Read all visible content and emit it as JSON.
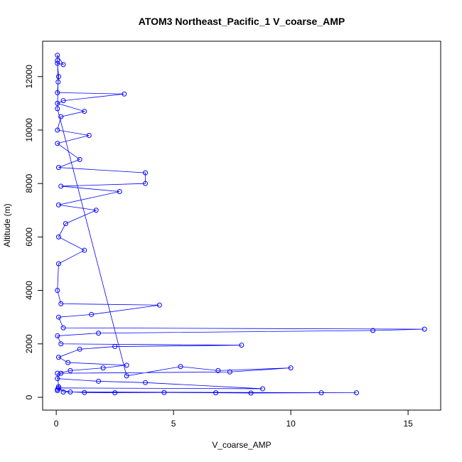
{
  "chart_data": {
    "type": "line",
    "title": "ATOM3 Northeast_Pacific_1 V_coarse_AMP",
    "x_label": "V_coarse_AMP",
    "y_label": "Altitude (m)",
    "color": "#0000ff",
    "markers": true,
    "x": [
      0.05,
      0.6,
      1.2,
      2.5,
      4.6,
      6.8,
      8.3,
      11.3,
      12.8,
      0.3,
      0.1,
      0.05,
      0.6,
      2.0,
      3.0,
      0.5,
      0.1,
      1.0,
      2.5,
      7.9,
      0.2,
      0.05,
      1.8,
      13.5,
      15.7,
      0.3,
      0.1,
      1.5,
      4.4,
      0.2,
      0.05,
      0.1,
      1.2,
      0.1,
      0.4,
      1.7,
      0.1,
      2.7,
      0.2,
      3.8,
      3.8,
      0.1,
      1.0,
      0.05,
      1.4,
      0.05,
      0.2,
      1.2,
      0.05,
      0.3,
      2.9,
      0.05,
      0.1,
      0.05,
      0.3,
      0.05,
      0.05,
      0.08,
      0.05,
      3.0,
      5.3,
      6.9,
      10.0,
      7.4,
      0.2,
      0.05,
      1.8,
      3.8,
      8.8,
      0.1,
      0.05
    ],
    "y": [
      300,
      200,
      180,
      170,
      180,
      170,
      160,
      170,
      170,
      200,
      400,
      900,
      1000,
      1100,
      1200,
      1300,
      1500,
      1800,
      1900,
      1950,
      2000,
      2300,
      2400,
      2500,
      2550,
      2600,
      3000,
      3100,
      3450,
      3500,
      4000,
      5000,
      5500,
      6000,
      6500,
      7000,
      7200,
      7700,
      7900,
      8000,
      8400,
      8600,
      8900,
      9500,
      9800,
      10000,
      10500,
      10700,
      11000,
      11100,
      11350,
      11400,
      12000,
      12500,
      12450,
      12800,
      12600,
      11800,
      10800,
      800,
      1150,
      1000,
      1100,
      950,
      900,
      700,
      600,
      550,
      320,
      350,
      250
    ],
    "xlim": [
      -0.58,
      16.39
    ],
    "ylim": [
      -479,
      13324
    ],
    "xticks": [
      0,
      5,
      10,
      15
    ],
    "yticks": [
      0,
      2000,
      4000,
      6000,
      8000,
      10000,
      12000
    ]
  }
}
